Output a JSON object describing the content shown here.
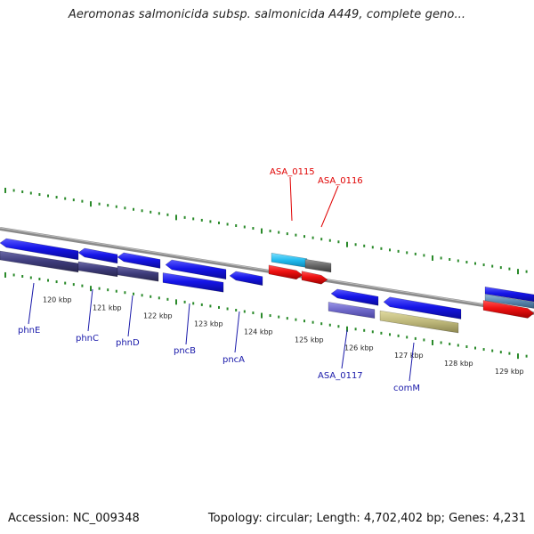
{
  "title": "Aeromonas salmonicida subsp. salmonicida A449, complete geno...",
  "footer": {
    "accession": "Accession: NC_009348",
    "summary": "Topology: circular; Length: 4,702,402 bp; Genes: 4,231"
  },
  "tick_labels": [
    "120 kbp",
    "121 kbp",
    "122 kbp",
    "123 kbp",
    "124 kbp",
    "125 kbp",
    "126 kbp",
    "127 kbp",
    "128 kbp",
    "129 kbp"
  ],
  "top_labels": [
    {
      "id": "asa-0115",
      "text": "ASA_0115",
      "color": "#e00000"
    },
    {
      "id": "asa-0116",
      "text": "ASA_0116",
      "color": "#e00000"
    }
  ],
  "bottom_labels": [
    {
      "id": "phne",
      "text": "phnE",
      "color": "#1a1aaa"
    },
    {
      "id": "phnc",
      "text": "phnC",
      "color": "#1a1aaa"
    },
    {
      "id": "phnd",
      "text": "phnD",
      "color": "#1a1aaa"
    },
    {
      "id": "pncb",
      "text": "pncB",
      "color": "#1a1aaa"
    },
    {
      "id": "pnca",
      "text": "pncA",
      "color": "#1a1aaa"
    },
    {
      "id": "asa-0117",
      "text": "ASA_0117",
      "color": "#1a1aaa"
    },
    {
      "id": "comm",
      "text": "comM",
      "color": "#1a1aaa"
    }
  ],
  "colors": {
    "backbone": "#8a8a8a",
    "cds": "#1515e8",
    "gene_dark": "#3d3b7a",
    "gene_light": "#6e68c8",
    "red": "#ee1111",
    "cyan": "#22bbee",
    "grey": "#666666",
    "khaki": "#bdb77a",
    "tick": "#2a8a2a"
  }
}
